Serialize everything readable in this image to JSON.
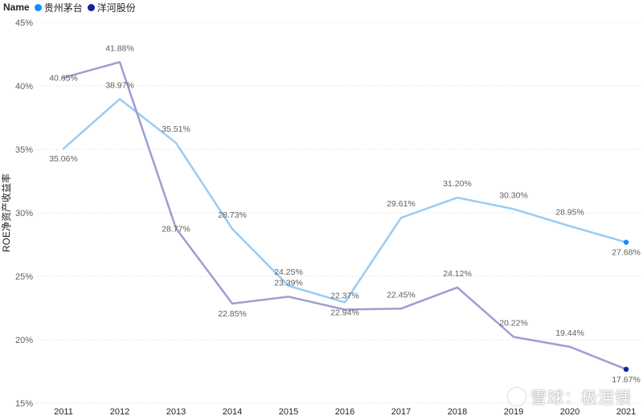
{
  "legend": {
    "title": "Name",
    "items": [
      {
        "label": "贵州茅台",
        "color": "#118DFF"
      },
      {
        "label": "洋河股份",
        "color": "#12239E"
      }
    ]
  },
  "watermark": {
    "text": "雪球：极涅镁"
  },
  "chart_data": {
    "type": "line",
    "ylabel": "ROE净资产收益率",
    "xlabel": "",
    "x": [
      "2011",
      "2012",
      "2013",
      "2014",
      "2015",
      "2016",
      "2017",
      "2018",
      "2019",
      "2020",
      "2021"
    ],
    "ylim": [
      15,
      45
    ],
    "yticks": [
      15,
      20,
      25,
      30,
      35,
      40,
      45
    ],
    "ytick_labels": [
      "15%",
      "20%",
      "25%",
      "30%",
      "35%",
      "40%",
      "45%"
    ],
    "grid": true,
    "legend_position": "top-left",
    "series": [
      {
        "name": "贵州茅台",
        "line_color": "#9ACCF2",
        "marker_color": "#118DFF",
        "values": [
          35.06,
          38.97,
          35.51,
          28.73,
          24.25,
          22.94,
          29.61,
          31.2,
          30.3,
          28.95,
          27.68
        ],
        "labels": [
          "35.06%",
          "38.97%",
          "35.51%",
          "28.73%",
          "24.25%",
          "22.94%",
          "29.61%",
          "31.20%",
          "30.30%",
          "28.95%",
          "27.68%"
        ]
      },
      {
        "name": "洋河股份",
        "line_color": "#9B9FD0",
        "marker_color": "#12239E",
        "values": [
          40.65,
          41.88,
          28.77,
          22.85,
          23.39,
          22.37,
          22.45,
          24.12,
          20.22,
          19.44,
          17.67
        ],
        "labels": [
          "40.65%",
          "41.88%",
          "28.77%",
          "22.85%",
          "23.39%",
          "22.37%",
          "22.45%",
          "24.12%",
          "20.22%",
          "19.44%",
          "17.67%"
        ]
      }
    ]
  }
}
